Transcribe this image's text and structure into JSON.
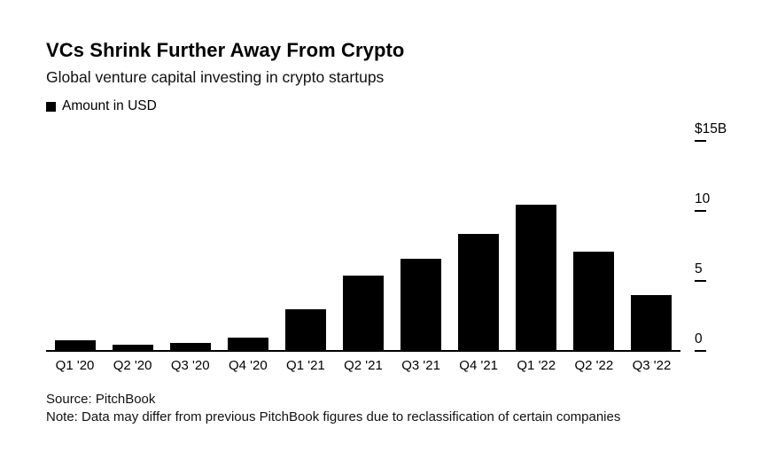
{
  "header": {
    "title": "VCs Shrink Further Away From Crypto",
    "subtitle": "Global venture capital investing in crypto startups"
  },
  "legend": {
    "label": "Amount in USD",
    "swatch_color": "#000000"
  },
  "chart_data": {
    "type": "bar",
    "title": "VCs Shrink Further Away From Crypto",
    "subtitle": "Global venture capital investing in crypto startups",
    "series_name": "Amount in USD",
    "unit": "USD billions",
    "categories": [
      "Q1 '20",
      "Q2 '20",
      "Q3 '20",
      "Q4 '20",
      "Q1 '21",
      "Q2 '21",
      "Q3 '21",
      "Q4 '21",
      "Q1 '22",
      "Q2 '22",
      "Q3 '22"
    ],
    "values": [
      0.7,
      0.35,
      0.5,
      0.9,
      2.9,
      5.3,
      6.5,
      8.3,
      10.4,
      7.0,
      3.9
    ],
    "ylim": [
      0,
      15
    ],
    "yticks": [
      {
        "value": 0,
        "label": "0"
      },
      {
        "value": 5,
        "label": "5"
      },
      {
        "value": 10,
        "label": "10"
      },
      {
        "value": 15,
        "label": "$15B"
      }
    ],
    "bar_color": "#000000",
    "grid": false,
    "legend_position": "top-left",
    "axis_label_position": "right"
  },
  "footer": {
    "source": "Source: PitchBook",
    "note": "Note: Data may differ from previous PitchBook figures due to reclassification of certain companies"
  }
}
